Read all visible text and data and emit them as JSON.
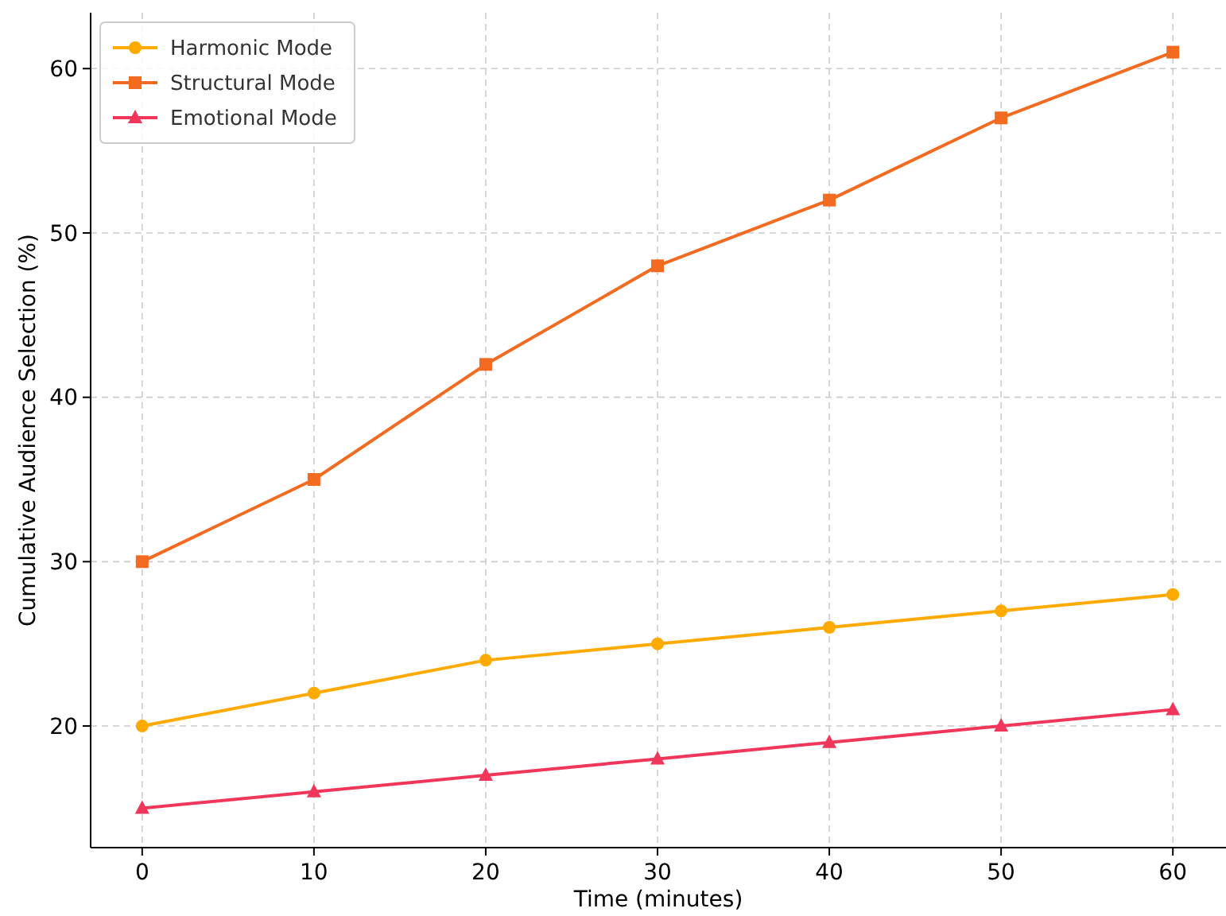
{
  "chart_data": {
    "type": "line",
    "xlabel": "Time (minutes)",
    "ylabel": "Cumulative Audience Selection (%)",
    "x": [
      0,
      10,
      20,
      30,
      40,
      50,
      60
    ],
    "series": [
      {
        "name": "Harmonic Mode",
        "color": "#ffaa00",
        "marker": "circle",
        "values": [
          20,
          22,
          24,
          25,
          26,
          27,
          28
        ]
      },
      {
        "name": "Structural Mode",
        "color": "#f26b21",
        "marker": "square",
        "values": [
          30,
          35,
          42,
          48,
          52,
          57,
          61
        ]
      },
      {
        "name": "Emotional Mode",
        "color": "#f0365a",
        "marker": "triangle",
        "values": [
          15,
          16,
          17,
          18,
          19,
          20,
          21
        ]
      }
    ],
    "xlim": [
      -3,
      63
    ],
    "xticks": [
      0,
      10,
      20,
      30,
      40,
      50,
      60
    ],
    "ylim": [
      12.6,
      63.4
    ],
    "yticks": [
      20,
      30,
      40,
      50,
      60
    ],
    "grid": true,
    "legend": "top left",
    "line_style": "solid"
  }
}
